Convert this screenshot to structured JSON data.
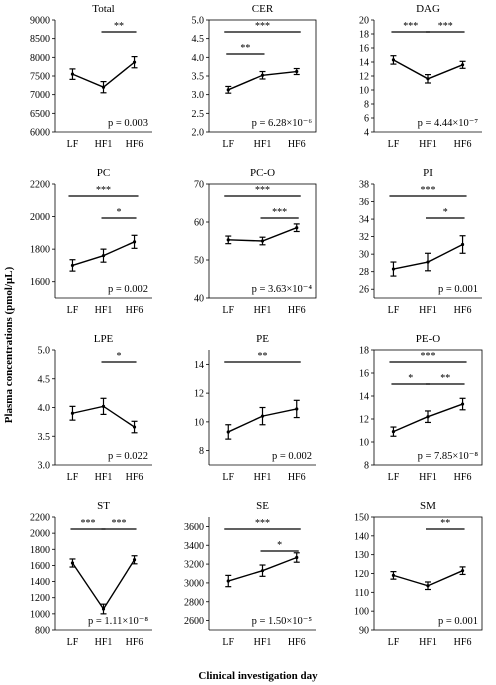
{
  "figure": {
    "ylabel": "Plasma concentrations (pmol/μL)",
    "xlabel": "Clinical investigation day"
  },
  "chart_data": [
    {
      "type": "line",
      "title": "Total",
      "categories": [
        "LF",
        "HF1",
        "HF6"
      ],
      "values": [
        7550,
        7200,
        7870
      ],
      "errors": [
        140,
        150,
        150
      ],
      "ylim": [
        6000,
        9000
      ],
      "yticks": [
        "6000",
        "6500",
        "7000",
        "7500",
        "8000",
        "8500",
        "9000"
      ],
      "pvalue": "p = 0.003",
      "box": false,
      "significance": [
        {
          "from": 1,
          "to": 2,
          "label": "**"
        }
      ]
    },
    {
      "type": "line",
      "title": "CER",
      "categories": [
        "LF",
        "HF1",
        "HF6"
      ],
      "values": [
        3.13,
        3.52,
        3.62
      ],
      "errors": [
        0.09,
        0.1,
        0.08
      ],
      "ylim": [
        2.0,
        5.0
      ],
      "yticks": [
        "2.0",
        "2.5",
        "3.0",
        "3.5",
        "4.0",
        "4.5",
        "5.0"
      ],
      "pvalue": "p = 6.28×10⁻⁶",
      "box": true,
      "significance": [
        {
          "from": 0,
          "to": 1,
          "label": "**"
        },
        {
          "from": 0,
          "to": 2,
          "label": "***"
        }
      ]
    },
    {
      "type": "line",
      "title": "DAG",
      "categories": [
        "LF",
        "HF1",
        "HF6"
      ],
      "values": [
        14.3,
        11.6,
        13.6
      ],
      "errors": [
        0.6,
        0.6,
        0.5
      ],
      "ylim": [
        4,
        20
      ],
      "yticks": [
        "4",
        "6",
        "8",
        "10",
        "12",
        "14",
        "16",
        "18",
        "20"
      ],
      "pvalue": "p = 4.44×10⁻⁷",
      "box": false,
      "significance": [
        {
          "from": 0,
          "to": 1,
          "label": "***"
        },
        {
          "from": 1,
          "to": 2,
          "label": "***"
        }
      ]
    },
    {
      "type": "line",
      "title": "PC",
      "categories": [
        "LF",
        "HF1",
        "HF6"
      ],
      "values": [
        1700,
        1760,
        1845
      ],
      "errors": [
        35,
        40,
        40
      ],
      "ylim": [
        1500,
        2200
      ],
      "yticks": [
        "1600",
        "1800",
        "2000",
        "2200"
      ],
      "pvalue": "p = 0.002",
      "box": false,
      "significance": [
        {
          "from": 0,
          "to": 2,
          "label": "***"
        },
        {
          "from": 1,
          "to": 2,
          "label": "*"
        }
      ]
    },
    {
      "type": "line",
      "title": "PC-O",
      "categories": [
        "LF",
        "HF1",
        "HF6"
      ],
      "values": [
        55.3,
        55.0,
        58.5
      ],
      "errors": [
        1.0,
        1.0,
        1.0
      ],
      "ylim": [
        40,
        70
      ],
      "yticks": [
        "40",
        "50",
        "60",
        "70"
      ],
      "pvalue": "p = 3.63×10⁻⁴",
      "box": true,
      "significance": [
        {
          "from": 0,
          "to": 2,
          "label": "***"
        },
        {
          "from": 1,
          "to": 2,
          "label": "***"
        }
      ]
    },
    {
      "type": "line",
      "title": "PI",
      "categories": [
        "LF",
        "HF1",
        "HF6"
      ],
      "values": [
        28.3,
        29.1,
        31.1
      ],
      "errors": [
        0.8,
        1.0,
        1.0
      ],
      "ylim": [
        25,
        38
      ],
      "yticks": [
        "26",
        "28",
        "30",
        "32",
        "34",
        "36",
        "38"
      ],
      "pvalue": "p = 0.001",
      "box": false,
      "significance": [
        {
          "from": 0,
          "to": 2,
          "label": "***"
        },
        {
          "from": 1,
          "to": 2,
          "label": "*"
        }
      ]
    },
    {
      "type": "line",
      "title": "LPE",
      "categories": [
        "LF",
        "HF1",
        "HF6"
      ],
      "values": [
        3.9,
        4.02,
        3.66
      ],
      "errors": [
        0.12,
        0.14,
        0.1
      ],
      "ylim": [
        3.0,
        5.0
      ],
      "yticks": [
        "3.0",
        "3.5",
        "4.0",
        "4.5",
        "5.0"
      ],
      "pvalue": "p = 0.022",
      "box": false,
      "significance": [
        {
          "from": 1,
          "to": 2,
          "label": "*"
        }
      ]
    },
    {
      "type": "line",
      "title": "PE",
      "categories": [
        "LF",
        "HF1",
        "HF6"
      ],
      "values": [
        9.3,
        10.4,
        10.9
      ],
      "errors": [
        0.5,
        0.6,
        0.6
      ],
      "ylim": [
        7,
        15
      ],
      "yticks": [
        "8",
        "10",
        "12",
        "14"
      ],
      "pvalue": "p = 0.002",
      "box": false,
      "significance": [
        {
          "from": 0,
          "to": 2,
          "label": "**"
        }
      ]
    },
    {
      "type": "line",
      "title": "PE-O",
      "categories": [
        "LF",
        "HF1",
        "HF6"
      ],
      "values": [
        10.9,
        12.2,
        13.3
      ],
      "errors": [
        0.4,
        0.5,
        0.5
      ],
      "ylim": [
        8,
        18
      ],
      "yticks": [
        "8",
        "10",
        "12",
        "14",
        "16",
        "18"
      ],
      "pvalue": "p = 7.85×10⁻⁸",
      "box": true,
      "significance": [
        {
          "from": 0,
          "to": 1,
          "label": "*"
        },
        {
          "from": 1,
          "to": 2,
          "label": "**"
        },
        {
          "from": 0,
          "to": 2,
          "label": "***"
        }
      ]
    },
    {
      "type": "line",
      "title": "ST",
      "categories": [
        "LF",
        "HF1",
        "HF6"
      ],
      "values": [
        1630,
        1060,
        1670
      ],
      "errors": [
        50,
        60,
        50
      ],
      "ylim": [
        800,
        2200
      ],
      "yticks": [
        "800",
        "1000",
        "1200",
        "1400",
        "1600",
        "1800",
        "2000",
        "2200"
      ],
      "pvalue": "p = 1.11×10⁻⁸",
      "box": false,
      "significance": [
        {
          "from": 0,
          "to": 1,
          "label": "***"
        },
        {
          "from": 1,
          "to": 2,
          "label": "***"
        }
      ]
    },
    {
      "type": "line",
      "title": "SE",
      "categories": [
        "LF",
        "HF1",
        "HF6"
      ],
      "values": [
        3020,
        3130,
        3270
      ],
      "errors": [
        60,
        60,
        50
      ],
      "ylim": [
        2500,
        3700
      ],
      "yticks": [
        "2600",
        "2800",
        "3000",
        "3200",
        "3400",
        "3600"
      ],
      "pvalue": "p = 1.50×10⁻⁵",
      "box": false,
      "significance": [
        {
          "from": 0,
          "to": 2,
          "label": "***"
        },
        {
          "from": 1,
          "to": 2,
          "label": "*"
        }
      ]
    },
    {
      "type": "line",
      "title": "SM",
      "categories": [
        "LF",
        "HF1",
        "HF6"
      ],
      "values": [
        119,
        113.5,
        121.5
      ],
      "errors": [
        2,
        2,
        2
      ],
      "ylim": [
        90,
        150
      ],
      "yticks": [
        "90",
        "100",
        "110",
        "120",
        "130",
        "140",
        "150"
      ],
      "pvalue": "p = 0.001",
      "box": true,
      "significance": [
        {
          "from": 1,
          "to": 2,
          "label": "**"
        }
      ]
    }
  ]
}
